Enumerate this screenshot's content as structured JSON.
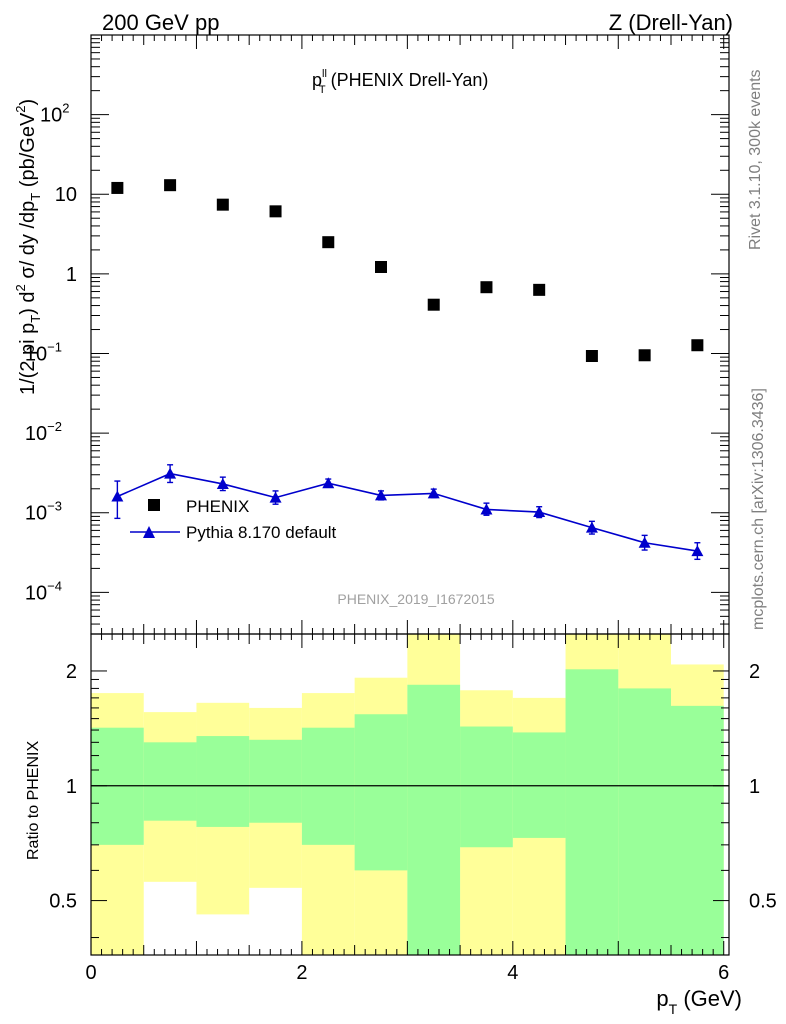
{
  "header": {
    "left": "200 GeV pp",
    "right": "Z (Drell-Yan)"
  },
  "side_text": {
    "rivet": "Rivet 3.1.10,  300k events",
    "source": "mcplots.cern.ch [arXiv:1306.3436]"
  },
  "plot_title": {
    "main": "p",
    "sup": "ll",
    "sub": "T",
    "rest": " (PHENIX Drell-Yan)"
  },
  "analysis_id": "PHENIX_2019_I1672015",
  "ylabel_top": "1/(2 pi p_T) d^2 σ/ dy /dp_T (pb/GeV^2)",
  "ylabel_bottom": "Ratio to PHENIX",
  "xlabel": "p_T (GeV)",
  "colors": {
    "data_marker": "#000000",
    "mc_line": "#0000cc",
    "band_inner": "#99ff99",
    "band_outer": "#ffff99"
  },
  "legend": [
    {
      "label": "PHENIX",
      "marker": "square",
      "color": "#000000"
    },
    {
      "label": "Pythia 8.170 default",
      "marker": "triangle-line",
      "color": "#0000cc"
    }
  ],
  "chart_data": [
    {
      "type": "scatter",
      "panel": "main",
      "yscale": "log",
      "xlim": [
        0,
        6.05
      ],
      "ylim": [
        3e-05,
        1000
      ],
      "x_ticks": [
        0,
        2,
        4,
        6
      ],
      "y_ticks": [
        {
          "value": 0.0001,
          "mant": "10",
          "exp": "−4"
        },
        {
          "value": 0.001,
          "mant": "10",
          "exp": "−3"
        },
        {
          "value": 0.01,
          "mant": "10",
          "exp": "−2"
        },
        {
          "value": 0.1,
          "mant": "10",
          "exp": "−1"
        },
        {
          "value": 1,
          "mant": "1",
          "exp": ""
        },
        {
          "value": 10,
          "mant": "10",
          "exp": ""
        },
        {
          "value": 100,
          "mant": "10",
          "exp": "2"
        }
      ],
      "grid": false,
      "legend_position": "middle-left",
      "x": [
        0.25,
        0.75,
        1.25,
        1.75,
        2.25,
        2.75,
        3.25,
        3.75,
        4.25,
        4.75,
        5.25,
        5.75
      ],
      "series": [
        {
          "name": "PHENIX",
          "values": [
            12.0,
            13.0,
            7.4,
            6.1,
            2.5,
            1.22,
            0.41,
            0.68,
            0.63,
            0.093,
            0.095,
            0.127
          ]
        },
        {
          "name": "Pythia 8.170 default",
          "values": [
            0.0016,
            0.0031,
            0.0023,
            0.00155,
            0.00235,
            0.00165,
            0.00175,
            0.0011,
            0.00102,
            0.00065,
            0.00042,
            0.00033
          ],
          "err_lo": [
            0.00085,
            0.0024,
            0.0019,
            0.00128,
            0.0021,
            0.00145,
            0.00155,
            0.00093,
            0.00087,
            0.00054,
            0.00034,
            0.00026
          ],
          "err_hi": [
            0.0025,
            0.004,
            0.0028,
            0.00188,
            0.00265,
            0.00188,
            0.00198,
            0.00132,
            0.00119,
            0.00078,
            0.00052,
            0.00042
          ]
        }
      ]
    },
    {
      "type": "area",
      "panel": "ratio",
      "yscale": "log",
      "xlim": [
        0,
        6.05
      ],
      "ylim": [
        0.36,
        2.5
      ],
      "x_ticks": [
        0,
        2,
        4,
        6
      ],
      "y_ticks": [
        0.5,
        1,
        2
      ],
      "reference_line": 1,
      "bin_edges": [
        0,
        0.5,
        1,
        1.5,
        2,
        2.5,
        3,
        3.5,
        4,
        4.5,
        5,
        5.5,
        6
      ],
      "bands": [
        {
          "level": "outer",
          "lo": [
            0.36,
            0.56,
            0.46,
            0.54,
            0.36,
            0.36,
            0.36,
            0.36,
            0.36,
            0.36,
            0.36,
            0.41
          ],
          "hi": [
            1.75,
            1.56,
            1.65,
            1.6,
            1.75,
            1.92,
            2.5,
            1.78,
            1.7,
            2.5,
            2.5,
            2.08
          ]
        },
        {
          "level": "inner",
          "lo": [
            0.7,
            0.81,
            0.78,
            0.8,
            0.7,
            0.6,
            0.36,
            0.69,
            0.73,
            0.36,
            0.36,
            0.36
          ],
          "hi": [
            1.42,
            1.3,
            1.35,
            1.32,
            1.42,
            1.54,
            1.84,
            1.43,
            1.38,
            2.02,
            1.8,
            1.62
          ]
        }
      ]
    }
  ]
}
